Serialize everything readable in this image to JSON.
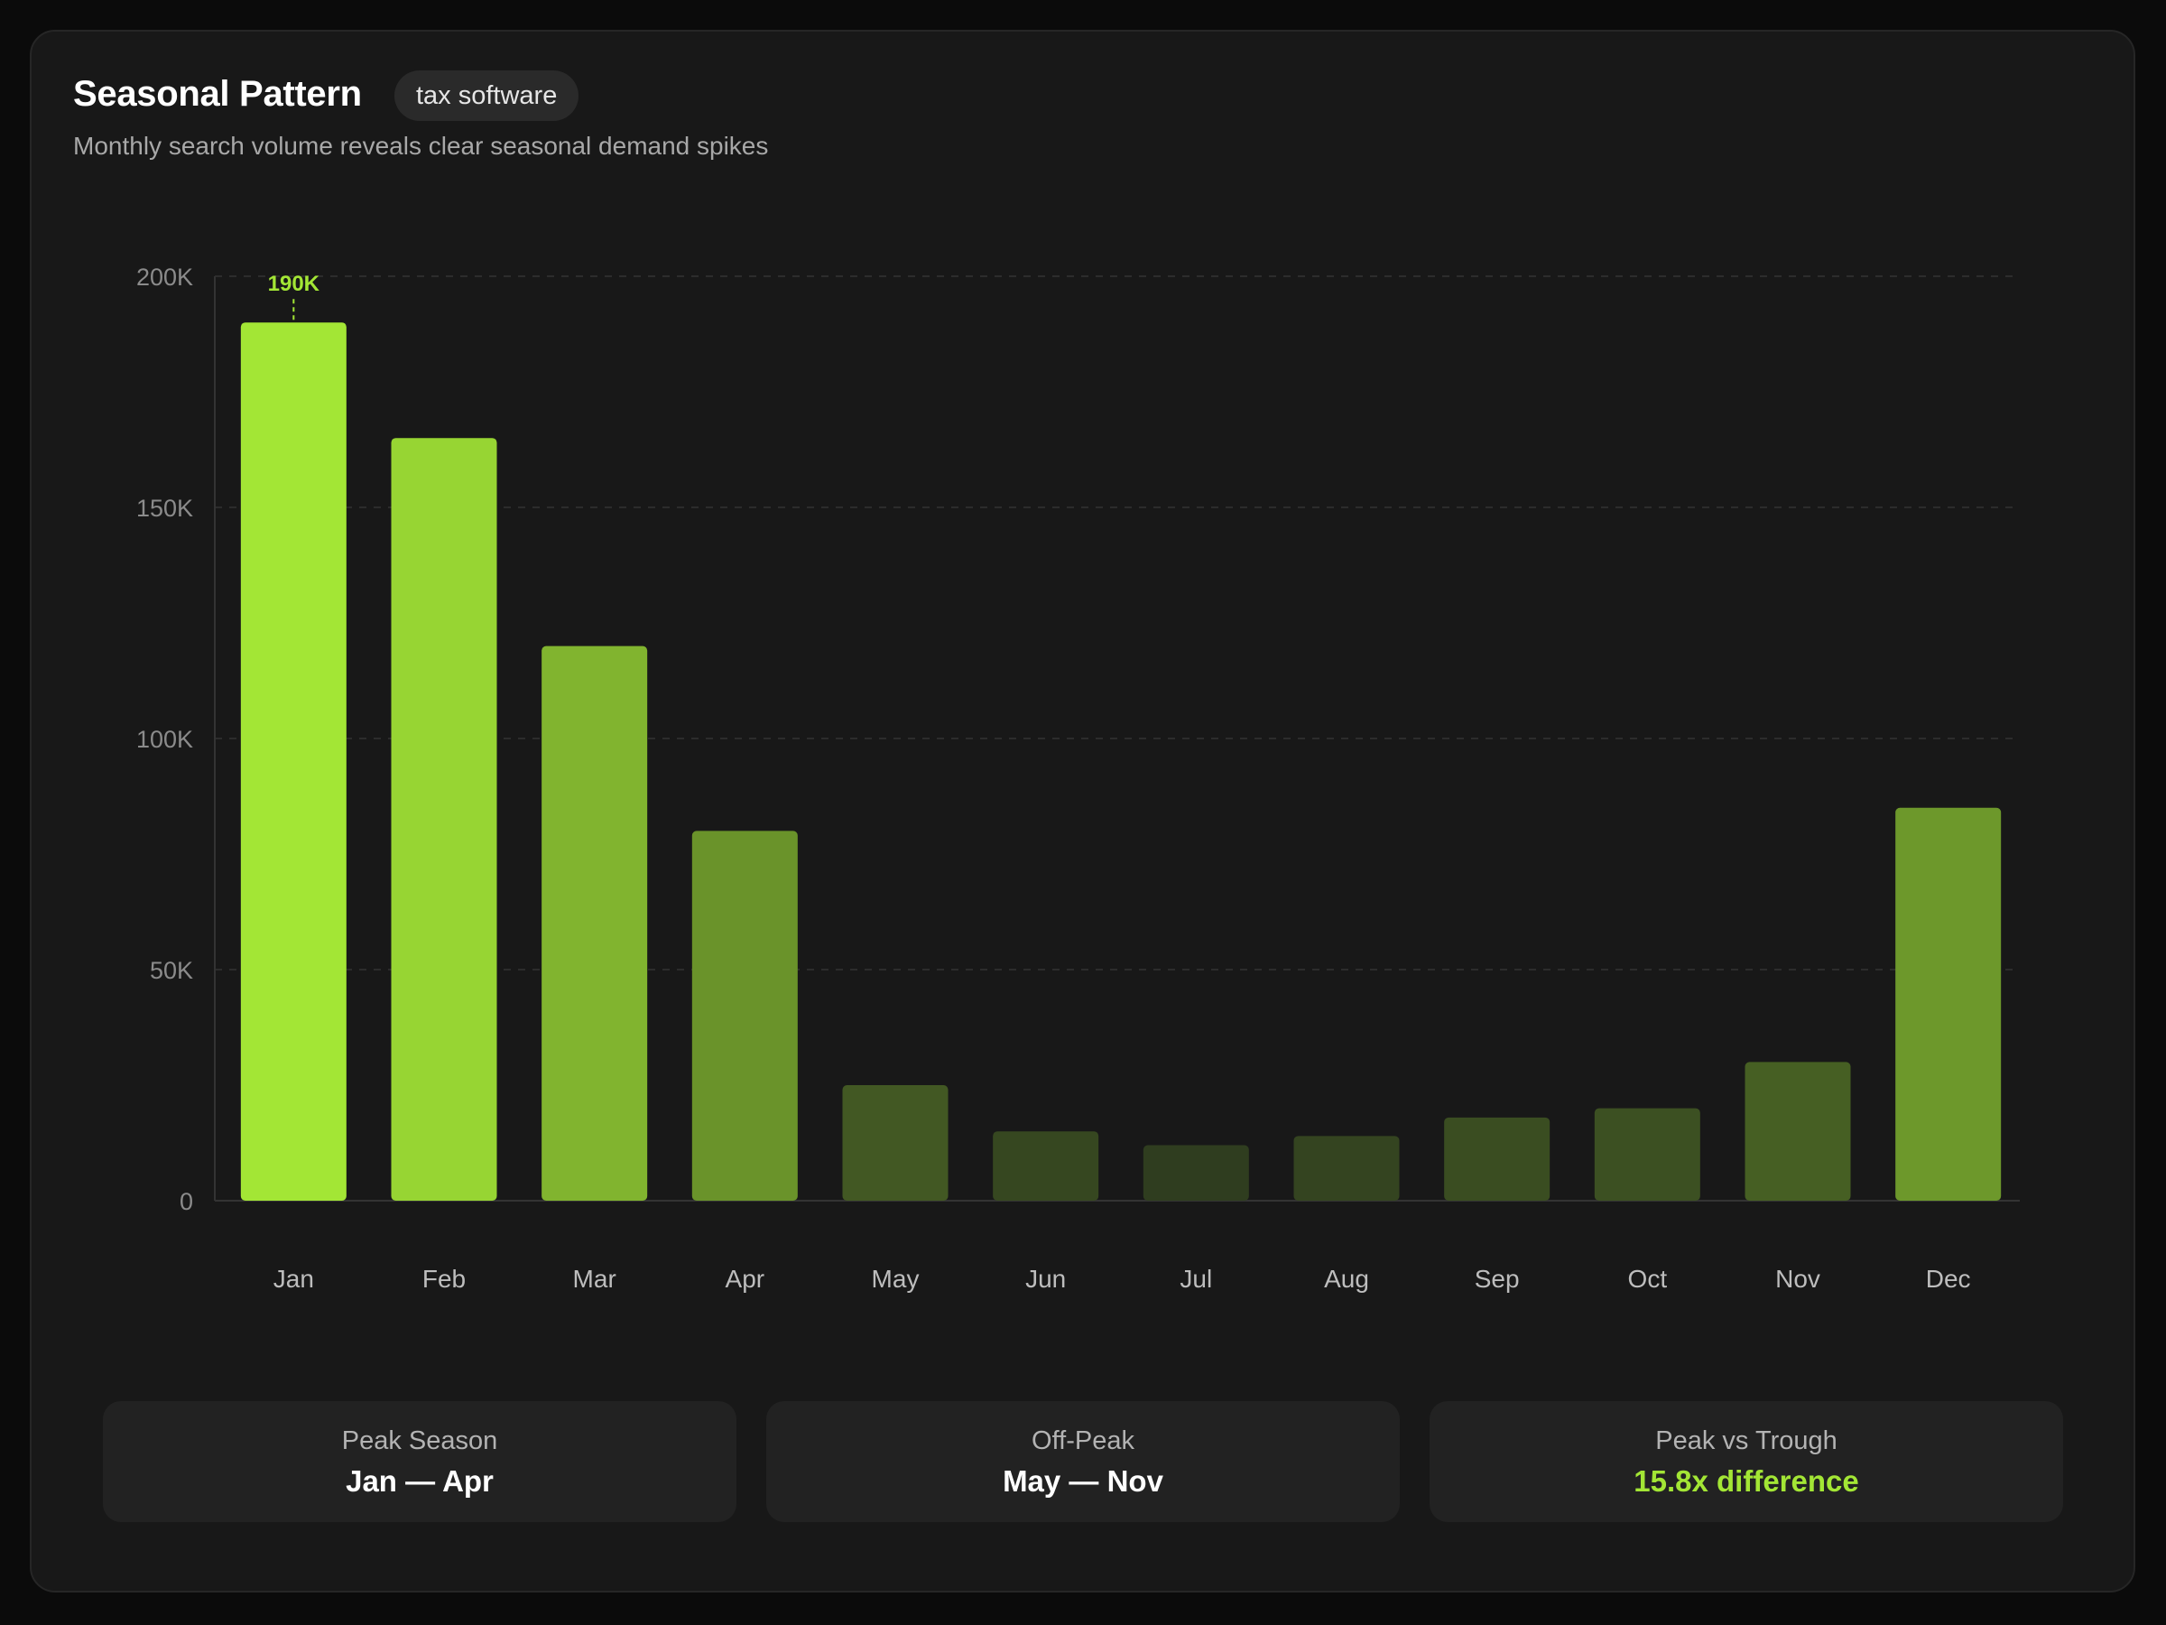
{
  "header": {
    "title": "Seasonal Pattern",
    "tag": "tax software",
    "subtitle": "Monthly search volume reveals clear seasonal demand spikes"
  },
  "chart_data": {
    "type": "bar",
    "categories": [
      "Jan",
      "Feb",
      "Mar",
      "Apr",
      "May",
      "Jun",
      "Jul",
      "Aug",
      "Sep",
      "Oct",
      "Nov",
      "Dec"
    ],
    "values": [
      190000,
      165000,
      120000,
      80000,
      25000,
      15000,
      12000,
      14000,
      18000,
      20000,
      30000,
      85000
    ],
    "ylim": [
      0,
      200000
    ],
    "yticks": [
      0,
      50000,
      100000,
      150000,
      200000
    ],
    "ytick_labels": [
      "0",
      "50K",
      "100K",
      "150K",
      "200K"
    ],
    "data_labels": [
      {
        "category": "Jan",
        "text": "190K"
      }
    ],
    "grid": true,
    "colors": {
      "peak": "#a3e635",
      "low": "#2f3d1f",
      "grid": "#2c2c2c",
      "axis": "#333333"
    }
  },
  "stats": [
    {
      "label": "Peak Season",
      "value": "Jan — Apr",
      "accent": false
    },
    {
      "label": "Off-Peak",
      "value": "May — Nov",
      "accent": false
    },
    {
      "label": "Peak vs Trough",
      "value": "15.8x difference",
      "accent": true
    }
  ]
}
